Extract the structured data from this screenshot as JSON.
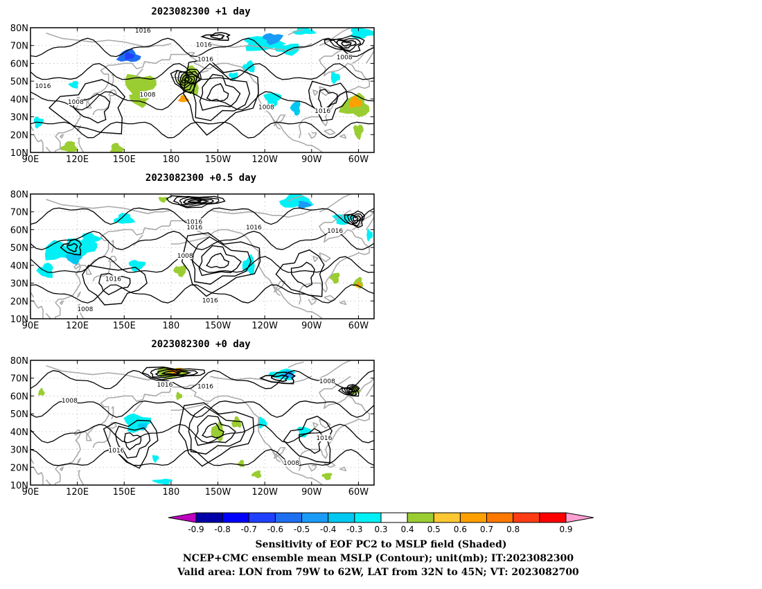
{
  "panels": [
    {
      "title": "2023082300  +1  day",
      "contour_labels": [
        {
          "text": "1016",
          "lon": 162,
          "lat": 78
        },
        {
          "text": "1016",
          "lon": -159,
          "lat": 70
        },
        {
          "text": "1016",
          "lon": -158,
          "lat": 62
        },
        {
          "text": "1016",
          "lon": 98,
          "lat": 47
        },
        {
          "text": "1008",
          "lon": 119,
          "lat": 38
        },
        {
          "text": "1008",
          "lon": 165,
          "lat": 42
        },
        {
          "text": "1008",
          "lon": -119,
          "lat": 35
        },
        {
          "text": "1016",
          "lon": -83,
          "lat": 33
        },
        {
          "text": "1008",
          "lon": -69,
          "lat": 63
        }
      ],
      "shading": [
        {
          "lon": 153,
          "lat": 64,
          "rx": 7,
          "ry": 3.5,
          "value": -0.6
        },
        {
          "lon": 153,
          "lat": 64,
          "rx": 3,
          "ry": 2,
          "value": -0.7
        },
        {
          "lon": 160,
          "lat": 48,
          "rx": 10,
          "ry": 6,
          "value": 0.3
        },
        {
          "lon": 160,
          "lat": 40,
          "rx": 6,
          "ry": 4,
          "value": 0.3
        },
        {
          "lon": -168,
          "lat": 50,
          "rx": 6,
          "ry": 8,
          "value": 0.3
        },
        {
          "lon": -172,
          "lat": 40,
          "rx": 3,
          "ry": 2,
          "value": 0.5
        },
        {
          "lon": -122,
          "lat": 71,
          "rx": 12,
          "ry": 4,
          "value": -0.3
        },
        {
          "lon": -115,
          "lat": 74,
          "rx": 6,
          "ry": 3,
          "value": -0.5
        },
        {
          "lon": -105,
          "lat": 68,
          "rx": 8,
          "ry": 3,
          "value": -0.3
        },
        {
          "lon": -130,
          "lat": 58,
          "rx": 4,
          "ry": 3,
          "value": -0.3
        },
        {
          "lon": -95,
          "lat": 78,
          "rx": 7,
          "ry": 2,
          "value": -0.3
        },
        {
          "lon": -58,
          "lat": 77,
          "rx": 8,
          "ry": 3,
          "value": -0.3
        },
        {
          "lon": -115,
          "lat": 40,
          "rx": 5,
          "ry": 4,
          "value": -0.3
        },
        {
          "lon": -100,
          "lat": 35,
          "rx": 3,
          "ry": 4,
          "value": -0.4
        },
        {
          "lon": -62,
          "lat": 36,
          "rx": 9,
          "ry": 6,
          "value": 0.3
        },
        {
          "lon": -62,
          "lat": 38,
          "rx": 4,
          "ry": 3,
          "value": 0.5
        },
        {
          "lon": -75,
          "lat": 52,
          "rx": 3,
          "ry": 3,
          "value": -0.3
        },
        {
          "lon": -60,
          "lat": 22,
          "rx": 3,
          "ry": 4,
          "value": 0.3
        },
        {
          "lon": 118,
          "lat": 48,
          "rx": 3,
          "ry": 2,
          "value": -0.3
        },
        {
          "lon": 115,
          "lat": 13,
          "rx": 5,
          "ry": 3,
          "value": 0.3
        },
        {
          "lon": 145,
          "lat": 12,
          "rx": 4,
          "ry": 3,
          "value": 0.3
        },
        {
          "lon": 95,
          "lat": 27,
          "rx": 3,
          "ry": 3,
          "value": -0.3
        },
        {
          "lon": -140,
          "lat": 53,
          "rx": 3,
          "ry": 2,
          "value": -0.3
        }
      ],
      "lows": [
        {
          "lon": -170,
          "lat": 51,
          "n": 6,
          "rx": 9,
          "ry": 6
        },
        {
          "lon": -68,
          "lat": 71,
          "n": 4,
          "rx": 12,
          "ry": 4
        },
        {
          "lon": -150,
          "lat": 75,
          "n": 2,
          "rx": 8,
          "ry": 2
        }
      ],
      "highs": [
        {
          "lon": -150,
          "lat": 43,
          "n": 4,
          "rx": 24,
          "ry": 18
        },
        {
          "lon": -80,
          "lat": 40,
          "n": 2,
          "rx": 12,
          "ry": 10
        },
        {
          "lon": 130,
          "lat": 35,
          "n": 2,
          "rx": 22,
          "ry": 14
        }
      ]
    },
    {
      "title": "2023082300  +0.5  day",
      "contour_labels": [
        {
          "text": "1016",
          "lon": -165,
          "lat": 64
        },
        {
          "text": "1016",
          "lon": -165,
          "lat": 61
        },
        {
          "text": "1016",
          "lon": -127,
          "lat": 61
        },
        {
          "text": "1016",
          "lon": -75,
          "lat": 59
        },
        {
          "text": "1008",
          "lon": -171,
          "lat": 45
        },
        {
          "text": "1016",
          "lon": 143,
          "lat": 32
        },
        {
          "text": "1016",
          "lon": -155,
          "lat": 20
        },
        {
          "text": "1008",
          "lon": 125,
          "lat": 15
        }
      ],
      "shading": [
        {
          "lon": 108,
          "lat": 48,
          "rx": 10,
          "ry": 5,
          "value": -0.3
        },
        {
          "lon": 122,
          "lat": 50,
          "rx": 10,
          "ry": 5,
          "value": -0.3
        },
        {
          "lon": 118,
          "lat": 44,
          "rx": 5,
          "ry": 3,
          "value": -0.4
        },
        {
          "lon": 100,
          "lat": 37,
          "rx": 5,
          "ry": 4,
          "value": -0.3
        },
        {
          "lon": 150,
          "lat": 66,
          "rx": 6,
          "ry": 3,
          "value": -0.3
        },
        {
          "lon": 128,
          "lat": 55,
          "rx": 6,
          "ry": 3,
          "value": -0.3
        },
        {
          "lon": 158,
          "lat": 40,
          "rx": 5,
          "ry": 3,
          "value": -0.3
        },
        {
          "lon": -174,
          "lat": 37,
          "rx": 4,
          "ry": 3,
          "value": 0.3
        },
        {
          "lon": -130,
          "lat": 40,
          "rx": 4,
          "ry": 5,
          "value": -0.3
        },
        {
          "lon": -100,
          "lat": 76,
          "rx": 10,
          "ry": 4,
          "value": -0.3
        },
        {
          "lon": -95,
          "lat": 74,
          "rx": 4,
          "ry": 2,
          "value": -0.5
        },
        {
          "lon": -70,
          "lat": 66,
          "rx": 6,
          "ry": 3,
          "value": -0.3
        },
        {
          "lon": -75,
          "lat": 33,
          "rx": 3,
          "ry": 3,
          "value": 0.3
        },
        {
          "lon": -60,
          "lat": 30,
          "rx": 3,
          "ry": 3,
          "value": 0.3
        },
        {
          "lon": -60,
          "lat": 29,
          "rx": 1.5,
          "ry": 1.5,
          "value": 0.5
        },
        {
          "lon": -53,
          "lat": 57,
          "rx": 2,
          "ry": 3,
          "value": -0.3
        },
        {
          "lon": -185,
          "lat": 77,
          "rx": 3,
          "ry": 1.5,
          "value": 0.3
        }
      ],
      "lows": [
        {
          "lon": -165,
          "lat": 76,
          "n": 5,
          "rx": 18,
          "ry": 3
        },
        {
          "lon": -62,
          "lat": 66,
          "n": 4,
          "rx": 6,
          "ry": 4
        },
        {
          "lon": 117,
          "lat": 50,
          "n": 2,
          "rx": 6,
          "ry": 4
        }
      ],
      "highs": [
        {
          "lon": -150,
          "lat": 42,
          "n": 4,
          "rx": 25,
          "ry": 15
        },
        {
          "lon": 143,
          "lat": 30,
          "n": 2,
          "rx": 20,
          "ry": 10
        },
        {
          "lon": -95,
          "lat": 35,
          "n": 2,
          "rx": 14,
          "ry": 12
        }
      ]
    },
    {
      "title": "2023082300  +0  day",
      "contour_labels": [
        {
          "text": "1016",
          "lon": -184,
          "lat": 66
        },
        {
          "text": "1016",
          "lon": -158,
          "lat": 65
        },
        {
          "text": "1008",
          "lon": -80,
          "lat": 68
        },
        {
          "text": "1008",
          "lon": 115,
          "lat": 57
        },
        {
          "text": "1016",
          "lon": 145,
          "lat": 29
        },
        {
          "text": "1008",
          "lon": -103,
          "lat": 22
        },
        {
          "text": "1016",
          "lon": -82,
          "lat": 36
        }
      ],
      "shading": [
        {
          "lon": -180,
          "lat": 73,
          "rx": 10,
          "ry": 3,
          "value": 0.3
        },
        {
          "lon": -177,
          "lat": 74,
          "rx": 5,
          "ry": 2,
          "value": 0.5
        },
        {
          "lon": -108,
          "lat": 72,
          "rx": 8,
          "ry": 3,
          "value": -0.3
        },
        {
          "lon": -105,
          "lat": 72,
          "rx": 4,
          "ry": 2,
          "value": -0.5
        },
        {
          "lon": -62,
          "lat": 63,
          "rx": 3,
          "ry": 2,
          "value": 0.3
        },
        {
          "lon": 158,
          "lat": 45,
          "rx": 8,
          "ry": 5,
          "value": -0.3
        },
        {
          "lon": 162,
          "lat": 43,
          "rx": 3,
          "ry": 2,
          "value": -0.4
        },
        {
          "lon": -150,
          "lat": 40,
          "rx": 4,
          "ry": 5,
          "value": 0.3
        },
        {
          "lon": -138,
          "lat": 45,
          "rx": 3,
          "ry": 3,
          "value": 0.3
        },
        {
          "lon": -122,
          "lat": 45,
          "rx": 3,
          "ry": 3,
          "value": -0.3
        },
        {
          "lon": -95,
          "lat": 40,
          "rx": 4,
          "ry": 3,
          "value": -0.3
        },
        {
          "lon": -80,
          "lat": 15,
          "rx": 3,
          "ry": 2,
          "value": 0.3
        },
        {
          "lon": -125,
          "lat": 16,
          "rx": 3,
          "ry": 2,
          "value": 0.3
        },
        {
          "lon": 97,
          "lat": 62,
          "rx": 2,
          "ry": 2,
          "value": 0.3
        },
        {
          "lon": 185,
          "lat": 60,
          "rx": 2,
          "ry": 2,
          "value": 0.3
        },
        {
          "lon": 170,
          "lat": 25,
          "rx": 2,
          "ry": 2,
          "value": -0.3
        },
        {
          "lon": 175,
          "lat": 12,
          "rx": 6,
          "ry": 1.5,
          "value": -0.3
        },
        {
          "lon": -135,
          "lat": 22,
          "rx": 2,
          "ry": 2,
          "value": 0.3
        }
      ],
      "lows": [
        {
          "lon": -180,
          "lat": 73,
          "n": 4,
          "rx": 20,
          "ry": 3
        },
        {
          "lon": -65,
          "lat": 63,
          "n": 5,
          "rx": 6,
          "ry": 3
        },
        {
          "lon": -110,
          "lat": 70,
          "n": 2,
          "rx": 10,
          "ry": 3
        }
      ],
      "highs": [
        {
          "lon": -153,
          "lat": 40,
          "n": 4,
          "rx": 24,
          "ry": 15
        },
        {
          "lon": 155,
          "lat": 35,
          "n": 3,
          "rx": 16,
          "ry": 12
        },
        {
          "lon": -90,
          "lat": 35,
          "n": 2,
          "rx": 14,
          "ry": 12
        }
      ]
    }
  ],
  "map": {
    "lon_range": [
      90,
      310
    ],
    "lat_range": [
      10,
      80
    ],
    "lon_ticks": [
      {
        "value": 90,
        "label": "90E"
      },
      {
        "value": 120,
        "label": "120E"
      },
      {
        "value": 150,
        "label": "150E"
      },
      {
        "value": 180,
        "label": "180"
      },
      {
        "value": 210,
        "label": "150W"
      },
      {
        "value": 240,
        "label": "120W"
      },
      {
        "value": 270,
        "label": "90W"
      },
      {
        "value": 300,
        "label": "60W"
      }
    ],
    "lat_ticks": [
      {
        "value": 10,
        "label": "10N"
      },
      {
        "value": 20,
        "label": "20N"
      },
      {
        "value": 30,
        "label": "30N"
      },
      {
        "value": 40,
        "label": "40N"
      },
      {
        "value": 50,
        "label": "50N"
      },
      {
        "value": 60,
        "label": "60N"
      },
      {
        "value": 70,
        "label": "70N"
      },
      {
        "value": 80,
        "label": "80N"
      }
    ],
    "coastline_color": "#aaaaaa",
    "contour_color": "#000000"
  },
  "colorbar": {
    "labels": [
      "-0.9",
      "-0.8",
      "-0.7",
      "-0.6",
      "-0.5",
      "-0.4",
      "-0.3",
      "0.3",
      "0.4",
      "0.5",
      "0.6",
      "0.7",
      "0.8",
      "0.9"
    ],
    "low_end_color": "#c000c0",
    "high_end_color": "#ffa0d2",
    "colors": [
      "#0000a8",
      "#0000ff",
      "#2040ff",
      "#1e6ef0",
      "#1a9bf5",
      "#00c8f0",
      "#00f0f5",
      "#ffffff",
      "#9acd32",
      "#ffc832",
      "#ffa000",
      "#ff7800",
      "#ff3c14",
      "#ff0000"
    ]
  },
  "footer": {
    "line1": "Sensitivity of EOF PC2 to MSLP field (Shaded)",
    "line2": "NCEP+CMC ensemble mean MSLP (Contour); unit(mb); IT:2023082300",
    "line3": "Valid area: LON from 79W to 62W, LAT from 32N to 45N; VT: 2023082700"
  }
}
